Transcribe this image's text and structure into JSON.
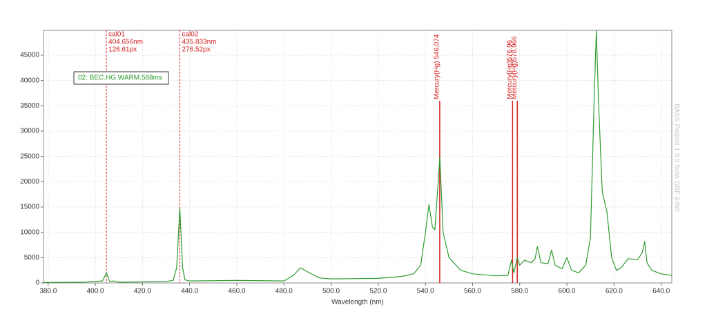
{
  "chart_data": {
    "type": "line",
    "xlabel": "Wavelength (nm)",
    "x": [
      378,
      395,
      403,
      404.7,
      406,
      408,
      410,
      420,
      430,
      433,
      434.5,
      435.8,
      437,
      438,
      440,
      460,
      480,
      484,
      487,
      490,
      495,
      500,
      520,
      530,
      535,
      538,
      540,
      541.5,
      543,
      544,
      545,
      546.1,
      547.5,
      550,
      555,
      560,
      570,
      575,
      576.5,
      577.5,
      579,
      580,
      582,
      585,
      586.5,
      587.5,
      589,
      592,
      593.5,
      595,
      598,
      600,
      602,
      605,
      608,
      610,
      611.5,
      612.5,
      613.5,
      615,
      617,
      619,
      621,
      623,
      626,
      630,
      632,
      633,
      634,
      636,
      640,
      644.5
    ],
    "series": [
      {
        "name": "02: BEC.HG.WARM.588ms",
        "color": "#2e9a2e",
        "values": [
          100,
          150,
          400,
          2000,
          300,
          400,
          150,
          200,
          300,
          500,
          3000,
          14800,
          3000,
          600,
          400,
          500,
          400,
          1500,
          3000,
          2200,
          1000,
          800,
          900,
          1300,
          1800,
          3500,
          10000,
          15500,
          11000,
          10500,
          17000,
          24800,
          10000,
          5000,
          2500,
          1800,
          1400,
          1500,
          4500,
          2000,
          5000,
          3500,
          4500,
          4000,
          4800,
          7200,
          4000,
          3800,
          6500,
          3500,
          2800,
          5000,
          2500,
          2000,
          3500,
          9000,
          35000,
          49900,
          35000,
          18000,
          14000,
          5000,
          2500,
          3000,
          4800,
          4600,
          6000,
          8200,
          4000,
          2500,
          1800,
          1500
        ]
      }
    ],
    "xlim": [
      378,
      644.5
    ],
    "ylim": [
      0,
      49900
    ],
    "xticks": [
      {
        "value": 380,
        "label": "380.0"
      },
      {
        "value": 400,
        "label": "400.0"
      },
      {
        "value": 420,
        "label": "420.0"
      },
      {
        "value": 440,
        "label": "440.0"
      },
      {
        "value": 460,
        "label": "460.0"
      },
      {
        "value": 480,
        "label": "480.0"
      },
      {
        "value": 500,
        "label": "500.0"
      },
      {
        "value": 520,
        "label": "520.0"
      },
      {
        "value": 540,
        "label": "540.0"
      },
      {
        "value": 560,
        "label": "560.0"
      },
      {
        "value": 580,
        "label": "580.0"
      },
      {
        "value": 600,
        "label": "600.0"
      },
      {
        "value": 620,
        "label": "620.0"
      },
      {
        "value": 640,
        "label": "640.0"
      }
    ],
    "yticks": [
      0,
      5000,
      10000,
      15000,
      20000,
      25000,
      30000,
      35000,
      40000,
      45000
    ],
    "grid": true,
    "marker_color": "#d42020",
    "calibration_markers": [
      {
        "value": 404.656,
        "label": "cal01",
        "wavelength_label": "404.656nm",
        "pixel_label": "126.61px"
      },
      {
        "value": 435.833,
        "label": "cal02",
        "wavelength_label": "435.833nm",
        "pixel_label": "276.52px"
      }
    ],
    "reference_lines": [
      {
        "value": 546.074,
        "label": "Mercury(Hg) 546.074"
      },
      {
        "value": 576.96,
        "label": "Mercury(Hg)576.96"
      },
      {
        "value": 578.966,
        "label": "Mercury(Hg)578.966"
      }
    ],
    "watermark": "BASS Project 1.9.9 Beta OBF 64bit"
  }
}
